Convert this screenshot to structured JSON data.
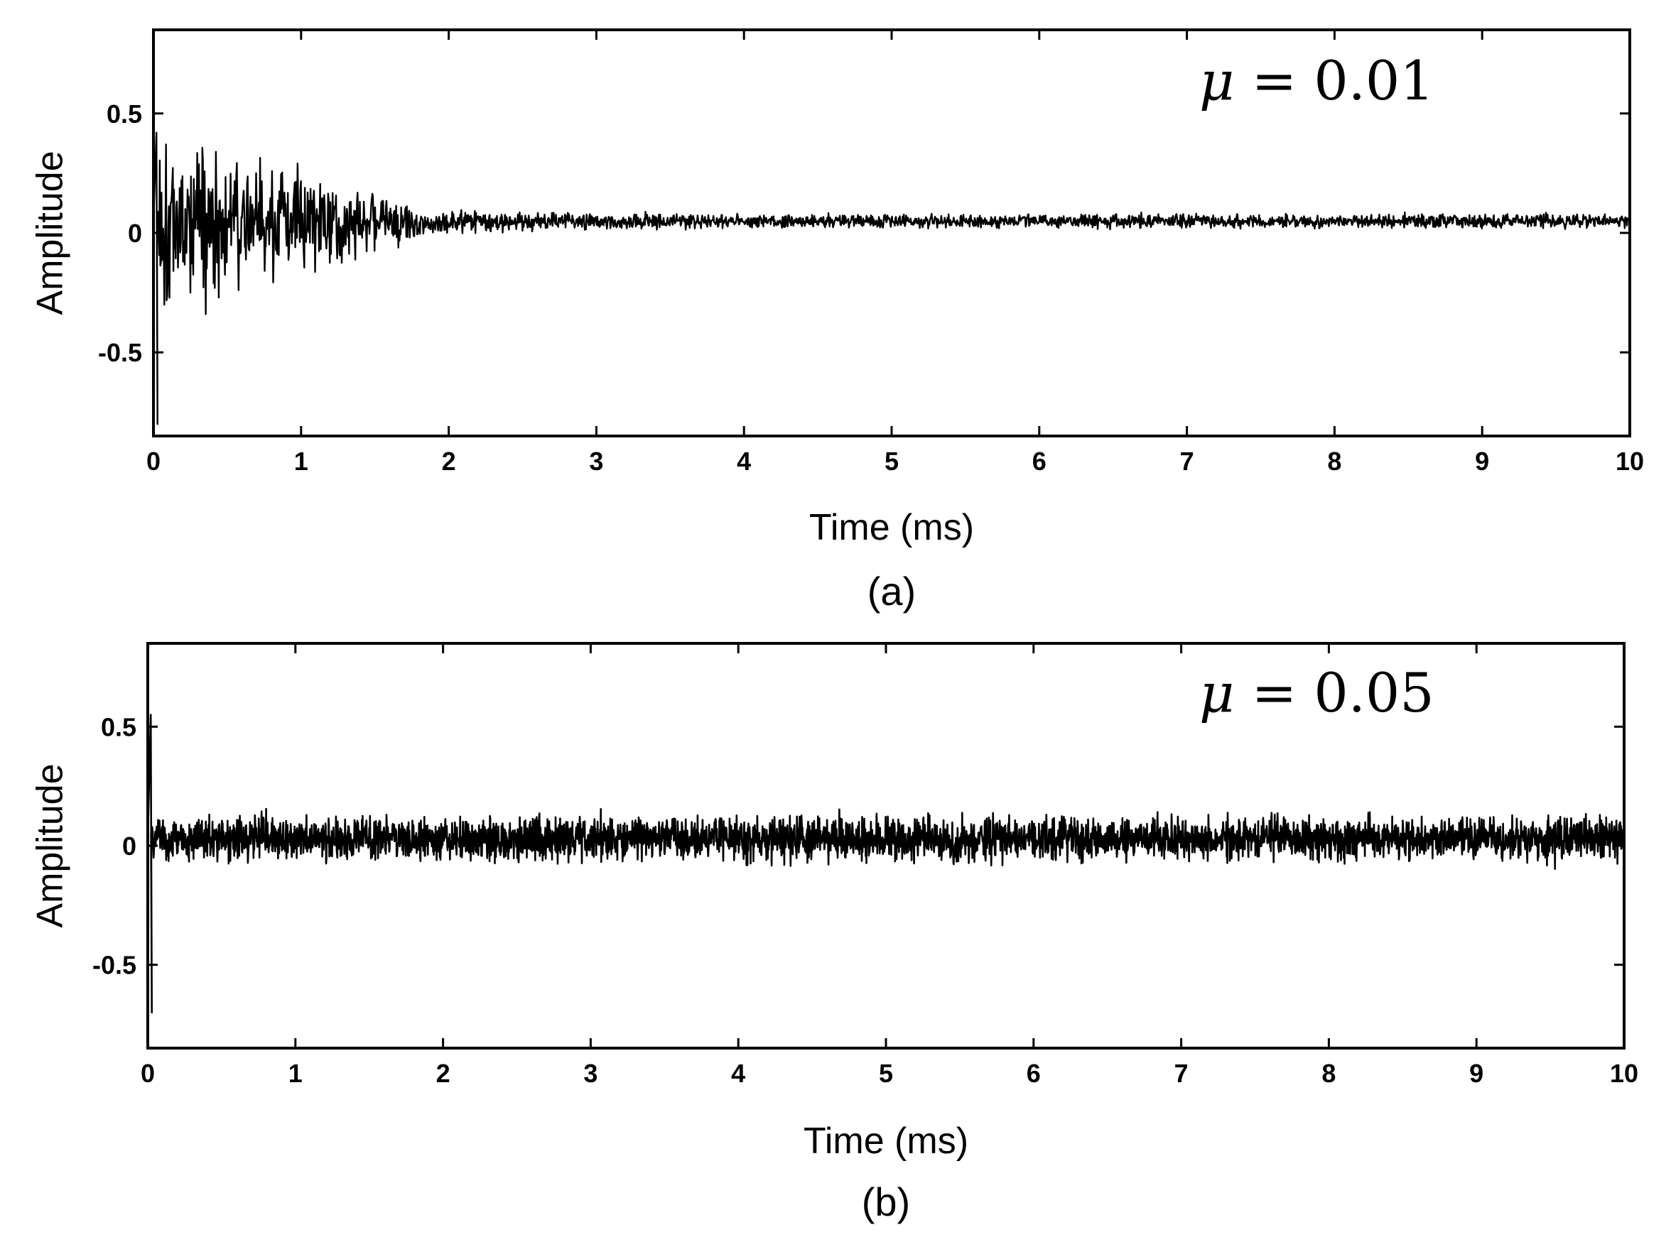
{
  "chart_data": [
    {
      "type": "line",
      "panel_label": "(a)",
      "annotation_symbol": "μ",
      "annotation_text": " = 0.01",
      "xlabel": "Time (ms)",
      "ylabel": "Amplitude",
      "xlim": [
        0,
        10
      ],
      "ylim": [
        -0.85,
        0.85
      ],
      "x_ticks": [
        "0",
        "1",
        "2",
        "3",
        "4",
        "5",
        "6",
        "7",
        "8",
        "9",
        "10"
      ],
      "y_ticks": [
        "0.5",
        "0",
        "-0.5"
      ],
      "grid": false,
      "series": [
        {
          "offset": 0.05,
          "envelope": [
            [
              0.0,
              0.3
            ],
            [
              0.3,
              0.3
            ],
            [
              0.6,
              0.22
            ],
            [
              1.0,
              0.18
            ],
            [
              1.4,
              0.12
            ],
            [
              1.8,
              0.06
            ],
            [
              2.2,
              0.04
            ],
            [
              3.0,
              0.03
            ],
            [
              4.0,
              0.025
            ],
            [
              10.0,
              0.025
            ]
          ],
          "spike": {
            "x": 0.02,
            "min": -0.8,
            "max": 0.42
          }
        }
      ]
    },
    {
      "type": "line",
      "panel_label": "(b)",
      "annotation_symbol": "μ",
      "annotation_text": " = 0.05",
      "xlabel": "Time (ms)",
      "ylabel": "Amplitude",
      "xlim": [
        0,
        10
      ],
      "ylim": [
        -0.85,
        0.85
      ],
      "x_ticks": [
        "0",
        "1",
        "2",
        "3",
        "4",
        "5",
        "6",
        "7",
        "8",
        "9",
        "10"
      ],
      "y_ticks": [
        "0.5",
        "0",
        "-0.5"
      ],
      "grid": false,
      "series": [
        {
          "offset": 0.03,
          "envelope": [
            [
              0.0,
              0.08
            ],
            [
              10.0,
              0.08
            ]
          ],
          "spike": {
            "x": 0.02,
            "min": -0.7,
            "max": 0.55
          }
        }
      ]
    }
  ]
}
